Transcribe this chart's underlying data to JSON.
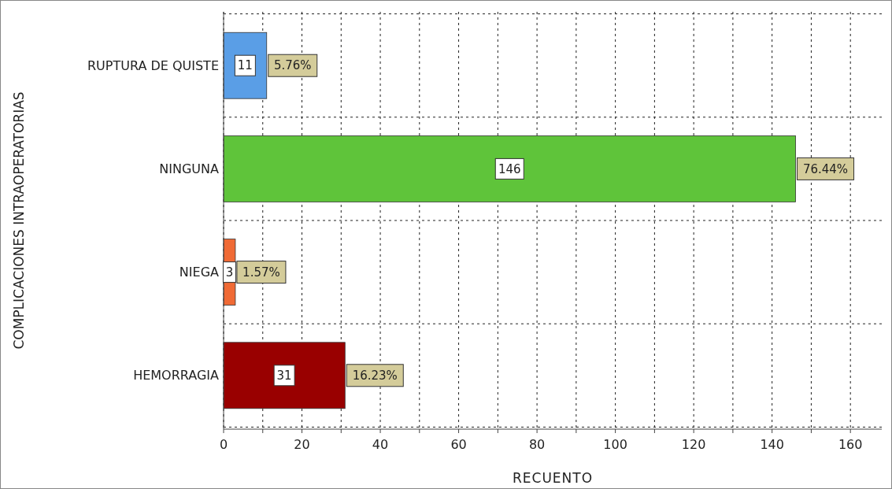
{
  "chart_data": {
    "type": "bar",
    "orientation": "horizontal",
    "ylabel": "COMPLICACIONES INTRAOPERATORIAS",
    "xlabel": "RECUENTO",
    "categories": [
      "RUPTURA DE QUISTE",
      "NINGUNA",
      "NIEGA",
      "HEMORRAGIA"
    ],
    "values": [
      11,
      146,
      3,
      31
    ],
    "colors": [
      "#5a9ee6",
      "#5fc43a",
      "#f06a35",
      "#990000"
    ],
    "data_labels": true,
    "annotations": [
      {
        "text": "5.76%",
        "x": 11,
        "y": "RUPTURA DE QUISTE"
      },
      {
        "text": "76.44%",
        "x": 146,
        "y": "NINGUNA"
      },
      {
        "text": "1.57%",
        "x": 3,
        "y": "NIEGA"
      },
      {
        "text": "16.23%",
        "x": 31,
        "y": "HEMORRAGIA"
      }
    ],
    "xlim": [
      0,
      168
    ],
    "xticks": [
      0,
      {
        "value": 10,
        "label": null
      },
      20,
      {
        "value": 30,
        "label": null
      },
      40,
      {
        "value": 50,
        "label": null
      },
      60,
      {
        "value": 70,
        "label": null
      },
      80,
      {
        "value": 90,
        "label": null
      },
      100,
      {
        "value": 110,
        "label": null
      },
      120,
      {
        "value": 130,
        "label": null
      },
      140,
      {
        "value": 150,
        "label": null
      },
      160
    ],
    "grid": true
  }
}
